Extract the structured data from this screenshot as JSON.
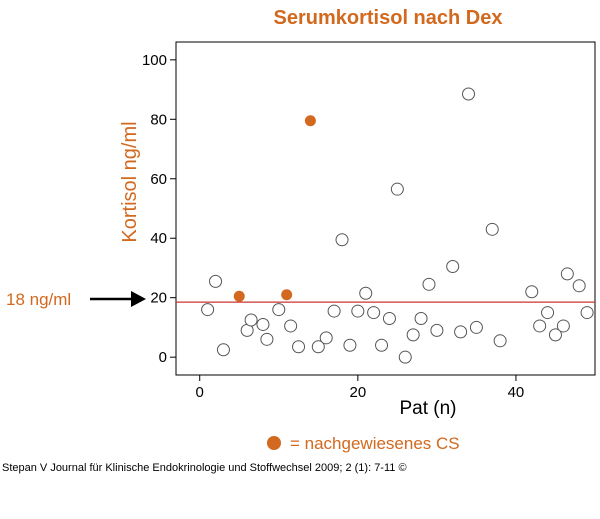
{
  "chart_data": {
    "type": "scatter",
    "title": "Serumkortisol nach Dex",
    "xlabel": "Pat (n)",
    "ylabel": "Kortisol ng/ml",
    "xlim": [
      -3,
      50
    ],
    "ylim": [
      -6,
      106
    ],
    "xticks": [
      0,
      20,
      40
    ],
    "yticks": [
      0,
      20,
      40,
      60,
      80,
      100
    ],
    "grid": false,
    "colors": {
      "accent": "#d2691e",
      "reference_line": "#cc3333",
      "axis": "#000000"
    },
    "reference_line": {
      "y": 18.5,
      "label": "18 ng/ml"
    },
    "series": [
      {
        "name": "",
        "marker": "open-circle",
        "points": [
          [
            1,
            16
          ],
          [
            2,
            25.5
          ],
          [
            3,
            2.5
          ],
          [
            6,
            9
          ],
          [
            6.5,
            12.5
          ],
          [
            8,
            11
          ],
          [
            8.5,
            6
          ],
          [
            10,
            16
          ],
          [
            11.5,
            10.5
          ],
          [
            12.5,
            3.5
          ],
          [
            15,
            3.5
          ],
          [
            16,
            6.5
          ],
          [
            17,
            15.5
          ],
          [
            18,
            39.5
          ],
          [
            19,
            4
          ],
          [
            20,
            15.5
          ],
          [
            21,
            21.5
          ],
          [
            22,
            15
          ],
          [
            23,
            4
          ],
          [
            24,
            13
          ],
          [
            25,
            56.5
          ],
          [
            26,
            0
          ],
          [
            27,
            7.5
          ],
          [
            28,
            13
          ],
          [
            29,
            24.5
          ],
          [
            30,
            9
          ],
          [
            32,
            30.5
          ],
          [
            33,
            8.5
          ],
          [
            34,
            88.5
          ],
          [
            35,
            10
          ],
          [
            37,
            43
          ],
          [
            38,
            5.5
          ],
          [
            42,
            22
          ],
          [
            43,
            10.5
          ],
          [
            44,
            15
          ],
          [
            45,
            7.5
          ],
          [
            46,
            10.5
          ],
          [
            46.5,
            28
          ],
          [
            48,
            24
          ],
          [
            49,
            15
          ]
        ]
      },
      {
        "name": "nachgewiesenes CS",
        "marker": "filled-circle",
        "color": "#d2691e",
        "points": [
          [
            5,
            20.5
          ],
          [
            11,
            21
          ],
          [
            14,
            79.5
          ]
        ]
      }
    ],
    "legend": {
      "position": "bottom-center",
      "text": "= nachgewiesenes CS"
    }
  },
  "citation": "Stepan V Journal für Klinische Endokrinologie und Stoffwechsel 2009; 2 (1): 7-11 ©"
}
